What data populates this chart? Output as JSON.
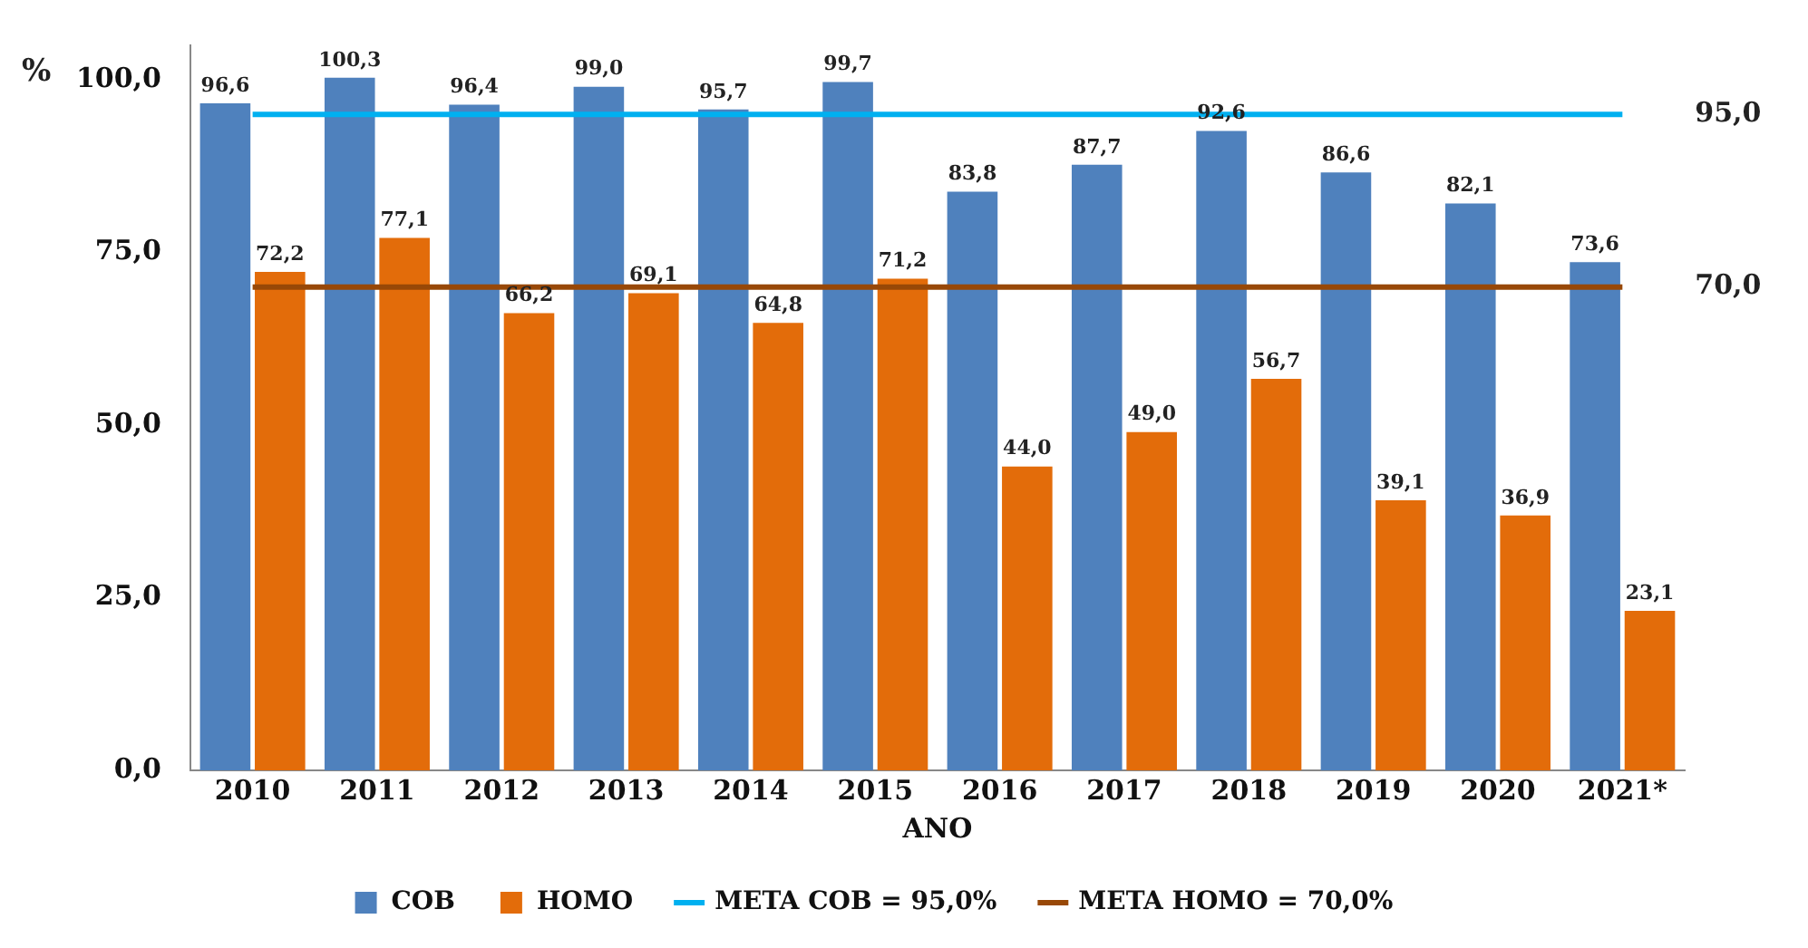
{
  "chart_data": {
    "type": "bar",
    "xlabel": "ANO",
    "ylabel": "%",
    "categories": [
      "2010",
      "2011",
      "2012",
      "2013",
      "2014",
      "2015",
      "2016",
      "2017",
      "2018",
      "2019",
      "2020",
      "2021*"
    ],
    "series": [
      {
        "name": "COB",
        "color": "#4f81bd",
        "values": [
          96.6,
          100.3,
          96.4,
          99.0,
          95.7,
          99.7,
          83.8,
          87.7,
          92.6,
          86.6,
          82.1,
          73.6
        ],
        "value_labels": [
          "96,6",
          "100,3",
          "96,4",
          "99,0",
          "95,7",
          "99,7",
          "83,8",
          "87,7",
          "92,6",
          "86,6",
          "82,1",
          "73,6"
        ]
      },
      {
        "name": "HOMO",
        "color": "#e36c0a",
        "values": [
          72.2,
          77.1,
          66.2,
          69.1,
          64.8,
          71.2,
          44.0,
          49.0,
          56.7,
          39.1,
          36.9,
          23.1
        ],
        "value_labels": [
          "72,2",
          "77,1",
          "66,2",
          "69,1",
          "64,8",
          "71,2",
          "44,0",
          "49,0",
          "56,7",
          "39,1",
          "36,9",
          "23,1"
        ]
      },
      {
        "name": "META COB = 95,0%",
        "type": "line",
        "color": "#00b0f0",
        "values": [
          95,
          95,
          95,
          95,
          95,
          95,
          95,
          95,
          95,
          95,
          95,
          95
        ]
      },
      {
        "name": "META HOMO = 70,0%",
        "type": "line",
        "color": "#984807",
        "values": [
          70,
          70,
          70,
          70,
          70,
          70,
          70,
          70,
          70,
          70,
          70,
          70
        ]
      }
    ],
    "annotations": [
      {
        "text": "95,0",
        "x": "2021*",
        "y": 95
      },
      {
        "text": "70,0",
        "x": "2021*",
        "y": 70
      }
    ],
    "ylim": [
      0,
      105
    ],
    "yticks": [
      {
        "value": 0,
        "label": "0,0"
      },
      {
        "value": 25,
        "label": "25,0"
      },
      {
        "value": 50,
        "label": "50,0"
      },
      {
        "value": 75,
        "label": "75,0"
      },
      {
        "value": 100,
        "label": "100,0"
      }
    ],
    "grid": false,
    "legend": "bottom",
    "marker": "none"
  }
}
